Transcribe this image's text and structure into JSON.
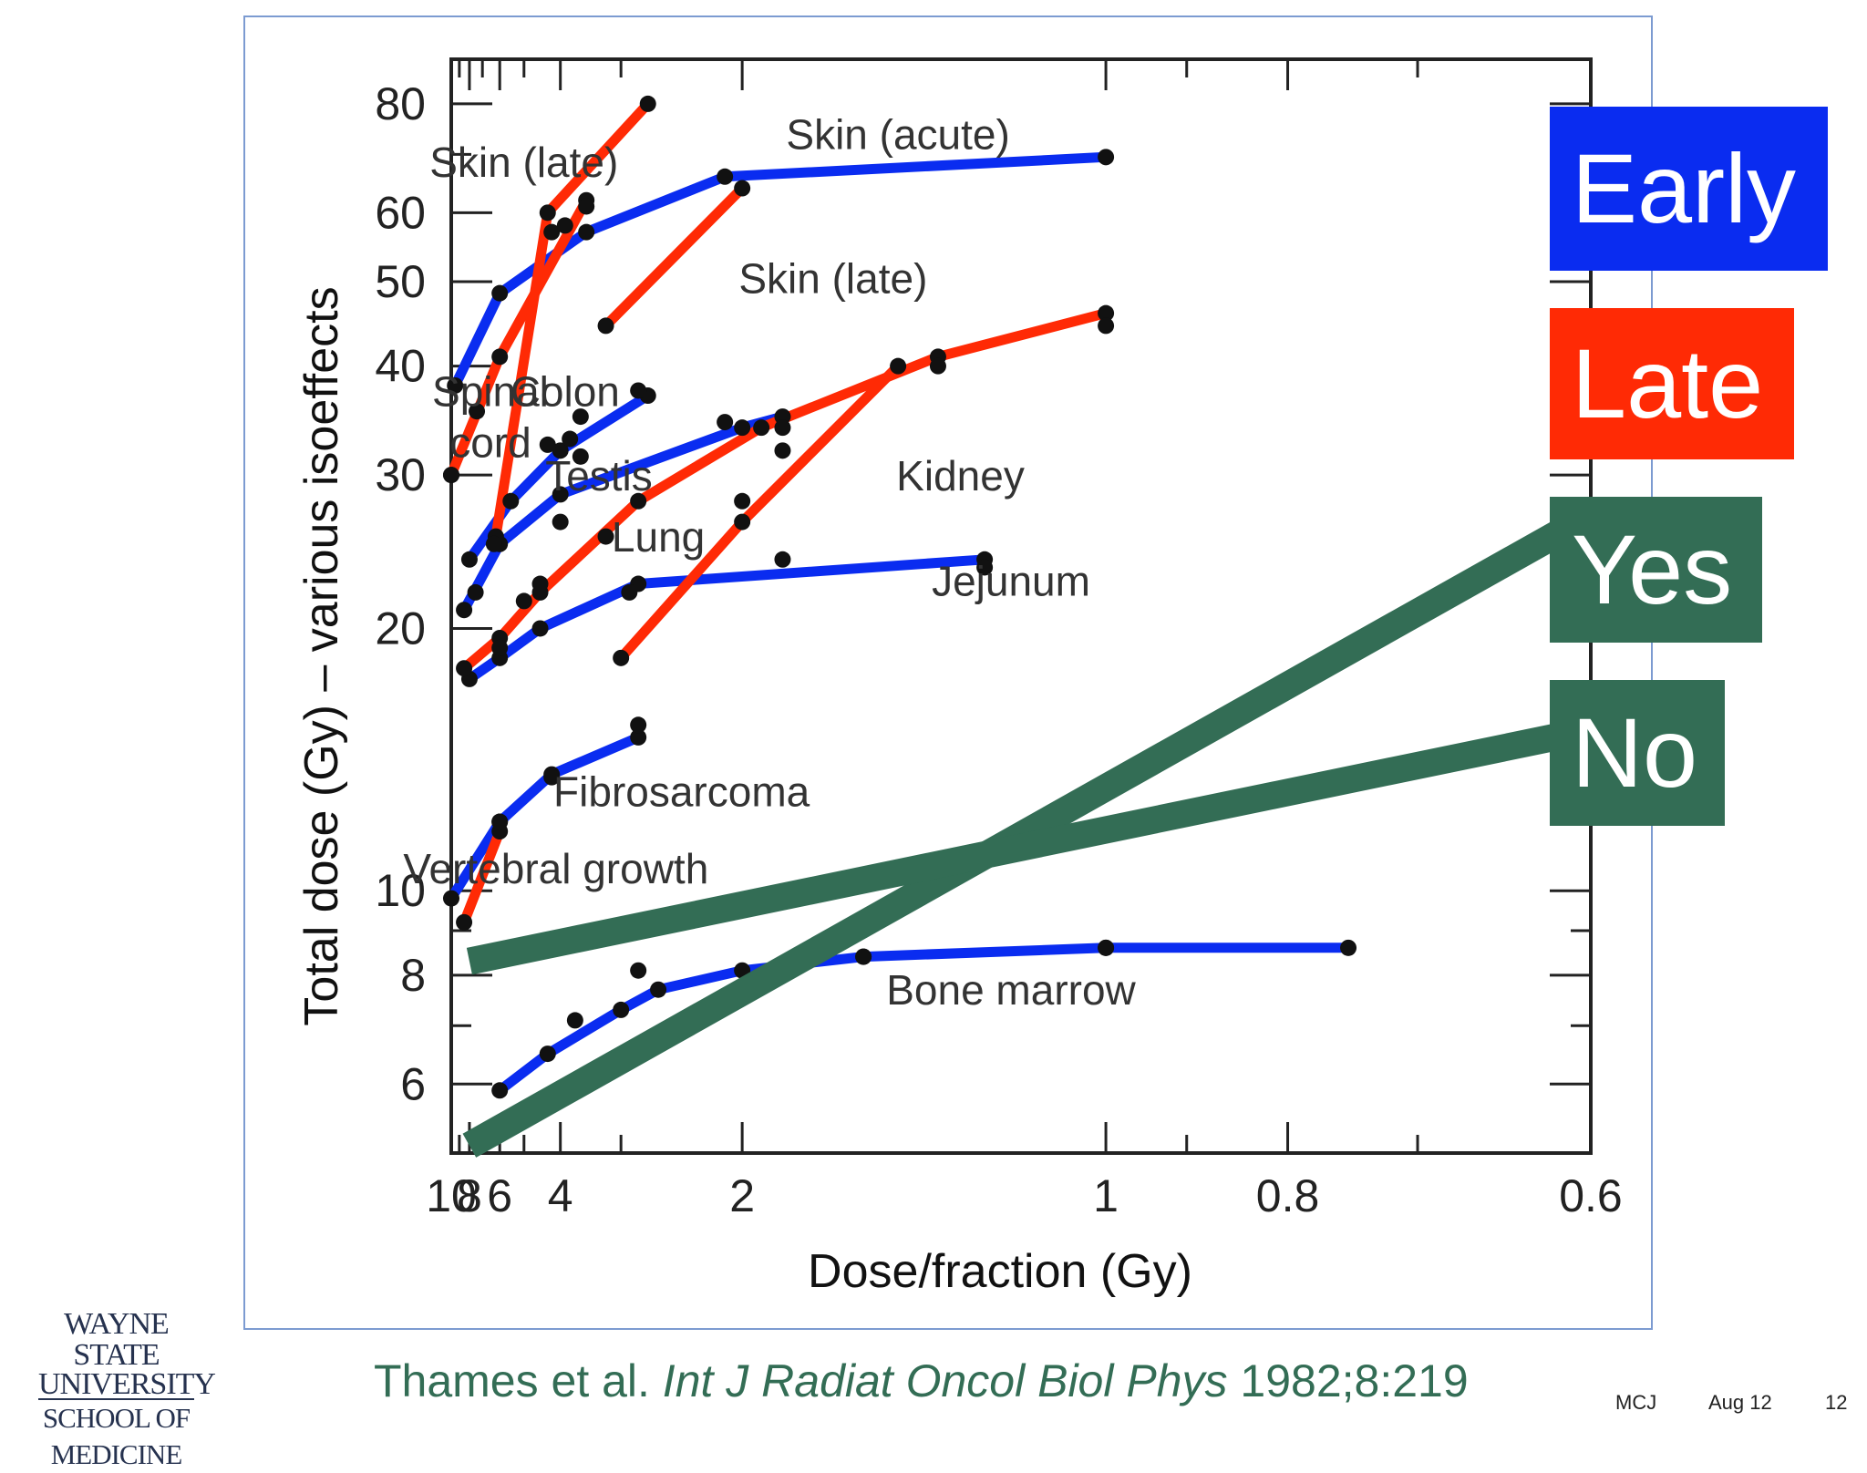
{
  "chart_data": {
    "type": "line",
    "xlabel": "Dose/fraction (Gy)",
    "ylabel": "Total dose (Gy) – various isoeffects",
    "x_scale": "reciprocal",
    "x_reversed": true,
    "y_scale": "log",
    "xlim": [
      10,
      0.6
    ],
    "ylim": [
      5,
      90
    ],
    "x_ticks": [
      10,
      8,
      6,
      4,
      2,
      1,
      0.8,
      0.6
    ],
    "x_tick_labels": [
      "10",
      "8",
      "6",
      "4",
      "2",
      "1",
      "0.8",
      "0.6"
    ],
    "y_ticks": [
      6,
      8,
      10,
      20,
      30,
      40,
      50,
      60,
      80
    ],
    "y_tick_labels": [
      "6",
      "8",
      "10",
      "20",
      "30",
      "40",
      "50",
      "60",
      "80"
    ],
    "series": [
      {
        "name": "Skin (acute)",
        "group": "Early",
        "color": "#0a2cf0",
        "points": [
          [
            9.5,
            38
          ],
          [
            6,
            48.5
          ],
          [
            3.5,
            57
          ],
          [
            2.1,
            66
          ],
          [
            1,
            69.5
          ]
        ]
      },
      {
        "name": "Colon",
        "group": "Early",
        "color": "#0a2cf0",
        "points": [
          [
            8,
            24
          ],
          [
            5.5,
            28
          ],
          [
            4,
            32
          ],
          [
            2.7,
            37
          ]
        ]
      },
      {
        "name": "Testis",
        "group": "Early",
        "color": "#0a2cf0",
        "points": [
          [
            8.5,
            21
          ],
          [
            6,
            25
          ],
          [
            4,
            28.5
          ],
          [
            2,
            34
          ],
          [
            1.8,
            35
          ]
        ]
      },
      {
        "name": "Jejunum",
        "group": "Early",
        "color": "#0a2cf0",
        "points": [
          [
            8,
            17.5
          ],
          [
            6,
            18.5
          ],
          [
            4.5,
            20
          ],
          [
            2.8,
            22.5
          ],
          [
            1.2,
            24
          ]
        ]
      },
      {
        "name": "Fibrosarcoma",
        "group": "Early",
        "color": "#0a2cf0",
        "points": [
          [
            10,
            9.8
          ],
          [
            6,
            12
          ],
          [
            4.2,
            13.6
          ],
          [
            2.8,
            15
          ]
        ]
      },
      {
        "name": "Bone marrow",
        "group": "Early",
        "color": "#0a2cf0",
        "points": [
          [
            6,
            5.9
          ],
          [
            4.3,
            6.5
          ],
          [
            3,
            7.3
          ],
          [
            2.6,
            7.7
          ],
          [
            2,
            8.1
          ],
          [
            1.5,
            8.4
          ],
          [
            1,
            8.6
          ],
          [
            0.75,
            8.6
          ]
        ]
      },
      {
        "name": "Spinal cord",
        "group": "Late",
        "color": "#ff2a05",
        "points": [
          [
            10,
            30
          ],
          [
            6,
            41
          ],
          [
            3.5,
            62
          ]
        ]
      },
      {
        "name": "Skin (late)",
        "group": "Late",
        "color": "#ff2a05",
        "points": [
          [
            6.2,
            25.5
          ],
          [
            4.3,
            60
          ],
          [
            2.7,
            80
          ]
        ]
      },
      {
        "name": "Skin (late)",
        "group": "Late",
        "color": "#ff2a05",
        "points": [
          [
            3.2,
            44.5
          ],
          [
            2,
            64
          ]
        ]
      },
      {
        "name": "Lung",
        "group": "Late",
        "color": "#ff2a05",
        "points": [
          [
            8.5,
            18
          ],
          [
            6,
            19.5
          ],
          [
            4.5,
            22
          ],
          [
            2.8,
            28
          ],
          [
            1.9,
            34
          ],
          [
            1.3,
            41
          ],
          [
            1,
            46
          ]
        ]
      },
      {
        "name": "Kidney",
        "group": "Late",
        "color": "#ff2a05",
        "points": [
          [
            3,
            18.5
          ],
          [
            2,
            26.5
          ],
          [
            1.4,
            40
          ]
        ]
      },
      {
        "name": "Vertebral growth",
        "group": "Late",
        "color": "#ff2a05",
        "points": [
          [
            8.5,
            9.2
          ],
          [
            6,
            11.7
          ]
        ]
      },
      {
        "name": "Yes",
        "group": "Yes",
        "color": "#336d55",
        "points": [
          [
            8,
            5.1
          ],
          [
            0.6,
            27
          ]
        ]
      },
      {
        "name": "No",
        "group": "No",
        "color": "#336d55",
        "points": [
          [
            8,
            8.3
          ],
          [
            0.6,
            15.3
          ]
        ]
      }
    ],
    "extra_points": [
      [
        3.5,
        61
      ],
      [
        2.8,
        37.5
      ],
      [
        2.1,
        34.5
      ],
      [
        1.8,
        34
      ],
      [
        1.8,
        32
      ],
      [
        1.3,
        40
      ],
      [
        1,
        44.5
      ],
      [
        2.9,
        22
      ],
      [
        4,
        26.5
      ],
      [
        5,
        21.5
      ],
      [
        4.5,
        22.5
      ],
      [
        7.5,
        22
      ],
      [
        6,
        19
      ],
      [
        6.3,
        25
      ],
      [
        3.2,
        25.5
      ],
      [
        3.6,
        31.5
      ],
      [
        4.3,
        32.5
      ],
      [
        6,
        12
      ],
      [
        4.2,
        13.5
      ],
      [
        2.8,
        15.5
      ],
      [
        1.8,
        24
      ],
      [
        3.8,
        33
      ],
      [
        3.6,
        35
      ],
      [
        7.4,
        35.5
      ],
      [
        4.2,
        57
      ],
      [
        3.9,
        58
      ],
      [
        1.2,
        23.5
      ],
      [
        10,
        30
      ],
      [
        2,
        28
      ],
      [
        2.8,
        8.1
      ],
      [
        3.7,
        7.1
      ],
      [
        1.5,
        8.4
      ],
      [
        1,
        8.6
      ]
    ],
    "annotations": [
      {
        "text": "Skin (acute)",
        "x": 1.4,
        "y": 71
      },
      {
        "text": "Skin (late)",
        "x": 5,
        "y": 66
      },
      {
        "text": "Skin (late)",
        "x": 1.6,
        "y": 48.5
      },
      {
        "text": "Spinal\ncord",
        "x": 6.5,
        "y": 36
      },
      {
        "text": "Colon",
        "x": 3.9,
        "y": 36
      },
      {
        "text": "Testis",
        "x": 3.3,
        "y": 28.8
      },
      {
        "text": "Lung",
        "x": 2.6,
        "y": 24.5
      },
      {
        "text": "Kidney",
        "x": 1.25,
        "y": 28.8
      },
      {
        "text": "Jejunum",
        "x": 1.15,
        "y": 21.8
      },
      {
        "text": "Fibrosarcoma",
        "x": 2.4,
        "y": 12.5
      },
      {
        "text": "Vertebral growth",
        "x": 4.1,
        "y": 10.2
      },
      {
        "text": "Bone marrow",
        "x": 1.15,
        "y": 7.4
      }
    ],
    "grid": false,
    "legend": {
      "placement": "right",
      "items": [
        {
          "label": "Early",
          "color": "#0a2cf0"
        },
        {
          "label": "Late",
          "color": "#ff2a05"
        },
        {
          "label": "Yes",
          "color": "#336d55"
        },
        {
          "label": "No",
          "color": "#336d55"
        }
      ]
    }
  },
  "footer": {
    "logo_line1": "WAYNE STATE",
    "logo_line2": "UNIVERSITY",
    "logo_line3": "SCHOOL OF MEDICINE",
    "citation_authors": "Thames et al. ",
    "citation_journal": "Int J Radiat Oncol Biol Phys",
    "citation_ref": " 1982;8:219",
    "author": "MCJ",
    "date": "Aug 12",
    "page": "12"
  }
}
